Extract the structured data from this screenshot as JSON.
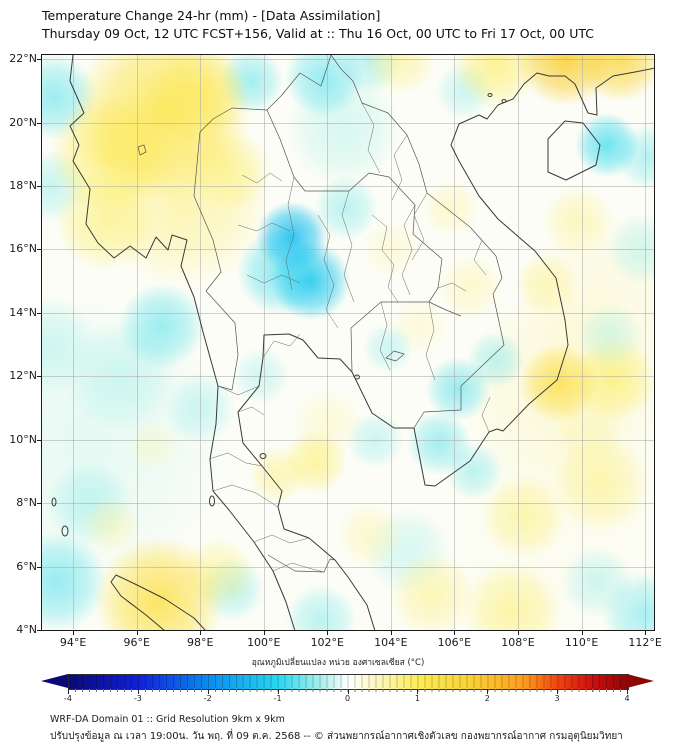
{
  "title": {
    "line1": "Temperature Change 24-hr (mm) - [Data Assimilation]",
    "line2": "Thursday 09 Oct, 12 UTC FCST+156, Valid at :: Thu 16 Oct, 00 UTC to Fri 17 Oct, 00 UTC"
  },
  "footer": {
    "line1": "WRF-DA Domain 01 :: Grid Resolution 9km x 9km",
    "line2": "ปรับปรุงข้อมูล ณ เวลา 19:00น. วัน พฤ. ที่ 09 ต.ค. 2568 -- © ส่วนพยากรณ์อากาศเชิงตัวเลข กองพยากรณ์อากาศ กรมอุตุนิยมวิทยา"
  },
  "chart_data": {
    "type": "heatmap",
    "title": "Temperature Change 24-hr (mm) - [Data Assimilation]",
    "subtitle": "Thursday 09 Oct, 12 UTC FCST+156, Valid at :: Thu 16 Oct, 00 UTC to Fri 17 Oct, 00 UTC",
    "region": "Thailand / Indochina (WRF-DA Domain 01, 9km grid)",
    "extent": {
      "lon": [
        93.02,
        112.28
      ],
      "lat": [
        4.0,
        22.13
      ]
    },
    "x_ticks": [
      {
        "label": "94°E",
        "lon": 94
      },
      {
        "label": "96°E",
        "lon": 96
      },
      {
        "label": "98°E",
        "lon": 98
      },
      {
        "label": "100°E",
        "lon": 100
      },
      {
        "label": "102°E",
        "lon": 102
      },
      {
        "label": "104°E",
        "lon": 104
      },
      {
        "label": "106°E",
        "lon": 106
      },
      {
        "label": "108°E",
        "lon": 108
      },
      {
        "label": "110°E",
        "lon": 110
      },
      {
        "label": "112°E",
        "lon": 112
      }
    ],
    "y_ticks": [
      {
        "label": "22°N",
        "lat": 22
      },
      {
        "label": "20°N",
        "lat": 20
      },
      {
        "label": "18°N",
        "lat": 18
      },
      {
        "label": "16°N",
        "lat": 16
      },
      {
        "label": "14°N",
        "lat": 14
      },
      {
        "label": "12°N",
        "lat": 12
      },
      {
        "label": "10°N",
        "lat": 10
      },
      {
        "label": "8°N",
        "lat": 8
      },
      {
        "label": "6°N",
        "lat": 6
      },
      {
        "label": "4°N",
        "lat": 4
      }
    ],
    "grid": true,
    "colorbar": {
      "label": "อุณหภูมิเปลี่ยนแปลง หน่วย องศาเซลเซียส (°C)",
      "ticks": [
        "-4",
        "-3",
        "-2",
        "-1",
        "0",
        "1",
        "2",
        "3",
        "4"
      ],
      "range": [
        -4,
        4
      ],
      "orientation": "horizontal",
      "extend": "both",
      "stops": [
        {
          "v": -4.0,
          "c": "#0a0a78"
        },
        {
          "v": -3.0,
          "c": "#1020d8"
        },
        {
          "v": -2.0,
          "c": "#0a8cf0"
        },
        {
          "v": -1.0,
          "c": "#28d8f0"
        },
        {
          "v": -0.4,
          "c": "#a8f0ea"
        },
        {
          "v": 0.0,
          "c": "#ffffff"
        },
        {
          "v": 0.4,
          "c": "#fdf6c0"
        },
        {
          "v": 1.0,
          "c": "#fdec55"
        },
        {
          "v": 1.8,
          "c": "#f8cf35"
        },
        {
          "v": 2.5,
          "c": "#ff9d1e"
        },
        {
          "v": 3.0,
          "c": "#f04410"
        },
        {
          "v": 3.5,
          "c": "#cc0f0f"
        },
        {
          "v": 4.0,
          "c": "#8c0606"
        }
      ]
    },
    "anomaly_blobs": [
      {
        "lon": 96.8,
        "lat": 20.3,
        "r": 125,
        "v": 1.2,
        "a": 0.85
      },
      {
        "lon": 95.2,
        "lat": 19.0,
        "r": 85,
        "v": 1.0,
        "a": 0.7
      },
      {
        "lon": 97.9,
        "lat": 20.9,
        "r": 70,
        "v": 1.1,
        "a": 0.6
      },
      {
        "lon": 95.0,
        "lat": 16.9,
        "r": 70,
        "v": 0.9,
        "a": 0.6
      },
      {
        "lon": 97.5,
        "lat": 17.5,
        "r": 120,
        "v": 0.8,
        "a": 0.55
      },
      {
        "lon": 98.9,
        "lat": 18.5,
        "r": 60,
        "v": 0.9,
        "a": 0.5
      },
      {
        "lon": 109.5,
        "lat": 22.1,
        "r": 70,
        "v": 1.8,
        "a": 0.9
      },
      {
        "lon": 111.2,
        "lat": 22.0,
        "r": 60,
        "v": 1.6,
        "a": 0.8
      },
      {
        "lon": 107.3,
        "lat": 21.8,
        "r": 60,
        "v": 1.0,
        "a": 0.6
      },
      {
        "lon": 104.3,
        "lat": 22.0,
        "r": 50,
        "v": 0.8,
        "a": 0.5
      },
      {
        "lon": 101.9,
        "lat": 21.4,
        "r": 55,
        "v": -0.8,
        "a": 0.6
      },
      {
        "lon": 103.3,
        "lat": 21.9,
        "r": 45,
        "v": -0.6,
        "a": 0.5
      },
      {
        "lon": 106.3,
        "lat": 21.0,
        "r": 40,
        "v": -0.5,
        "a": 0.45
      },
      {
        "lon": 93.4,
        "lat": 20.8,
        "r": 60,
        "v": -0.7,
        "a": 0.65
      },
      {
        "lon": 93.3,
        "lat": 18.0,
        "r": 50,
        "v": -0.5,
        "a": 0.5
      },
      {
        "lon": 93.2,
        "lat": 13.0,
        "r": 70,
        "v": -0.4,
        "a": 0.5
      },
      {
        "lon": 100.9,
        "lat": 16.4,
        "r": 50,
        "v": -1.3,
        "a": 0.9
      },
      {
        "lon": 101.5,
        "lat": 15.0,
        "r": 55,
        "v": -1.2,
        "a": 0.85
      },
      {
        "lon": 100.5,
        "lat": 15.3,
        "r": 60,
        "v": -0.9,
        "a": 0.6
      },
      {
        "lon": 102.6,
        "lat": 17.3,
        "r": 45,
        "v": -0.6,
        "a": 0.5
      },
      {
        "lon": 99.6,
        "lat": 21.3,
        "r": 45,
        "v": -0.7,
        "a": 0.6
      },
      {
        "lon": 102.5,
        "lat": 19.8,
        "r": 80,
        "v": -0.4,
        "a": 0.45
      },
      {
        "lon": 110.8,
        "lat": 19.3,
        "r": 45,
        "v": -0.9,
        "a": 0.75
      },
      {
        "lon": 112.1,
        "lat": 18.9,
        "r": 45,
        "v": -0.6,
        "a": 0.55
      },
      {
        "lon": 111.9,
        "lat": 16.0,
        "r": 50,
        "v": -0.4,
        "a": 0.5
      },
      {
        "lon": 110.9,
        "lat": 13.3,
        "r": 45,
        "v": -0.4,
        "a": 0.45
      },
      {
        "lon": 106.1,
        "lat": 11.6,
        "r": 45,
        "v": -0.8,
        "a": 0.6
      },
      {
        "lon": 107.3,
        "lat": 12.5,
        "r": 40,
        "v": -0.6,
        "a": 0.5
      },
      {
        "lon": 105.5,
        "lat": 9.9,
        "r": 45,
        "v": -0.7,
        "a": 0.6
      },
      {
        "lon": 106.6,
        "lat": 9.0,
        "r": 40,
        "v": -0.6,
        "a": 0.5
      },
      {
        "lon": 103.9,
        "lat": 12.9,
        "r": 35,
        "v": -0.5,
        "a": 0.45
      },
      {
        "lon": 109.3,
        "lat": 11.8,
        "r": 55,
        "v": 1.4,
        "a": 0.8
      },
      {
        "lon": 111.0,
        "lat": 11.9,
        "r": 60,
        "v": 1.0,
        "a": 0.6
      },
      {
        "lon": 110.6,
        "lat": 8.6,
        "r": 70,
        "v": 0.8,
        "a": 0.55
      },
      {
        "lon": 108.2,
        "lat": 7.6,
        "r": 60,
        "v": 0.9,
        "a": 0.5
      },
      {
        "lon": 105.3,
        "lat": 5.1,
        "r": 60,
        "v": 0.8,
        "a": 0.5
      },
      {
        "lon": 107.8,
        "lat": 4.6,
        "r": 70,
        "v": 0.9,
        "a": 0.55
      },
      {
        "lon": 109.5,
        "lat": 11.5,
        "r": 150,
        "v": 0.5,
        "a": 0.45
      },
      {
        "lon": 110.8,
        "lat": 14.5,
        "r": 120,
        "v": 0.4,
        "a": 0.4
      },
      {
        "lon": 101.6,
        "lat": 9.3,
        "r": 45,
        "v": 0.9,
        "a": 0.6
      },
      {
        "lon": 100.4,
        "lat": 8.9,
        "r": 40,
        "v": 0.8,
        "a": 0.5
      },
      {
        "lon": 103.3,
        "lat": 7.0,
        "r": 45,
        "v": 0.6,
        "a": 0.45
      },
      {
        "lon": 96.5,
        "lat": 9.8,
        "r": 35,
        "v": 0.5,
        "a": 0.4
      },
      {
        "lon": 96.7,
        "lat": 4.9,
        "r": 90,
        "v": 1.3,
        "a": 0.85
      },
      {
        "lon": 98.6,
        "lat": 5.8,
        "r": 50,
        "v": 0.8,
        "a": 0.5
      },
      {
        "lon": 95.2,
        "lat": 7.3,
        "r": 40,
        "v": 0.6,
        "a": 0.45
      },
      {
        "lon": 96.8,
        "lat": 13.6,
        "r": 60,
        "v": -0.7,
        "a": 0.65
      },
      {
        "lon": 95.5,
        "lat": 12.0,
        "r": 80,
        "v": -0.4,
        "a": 0.5
      },
      {
        "lon": 98.0,
        "lat": 11.0,
        "r": 50,
        "v": -0.5,
        "a": 0.45
      },
      {
        "lon": 94.5,
        "lat": 8.0,
        "r": 60,
        "v": -0.5,
        "a": 0.5
      },
      {
        "lon": 93.5,
        "lat": 5.5,
        "r": 70,
        "v": -0.8,
        "a": 0.6
      },
      {
        "lon": 99.0,
        "lat": 5.3,
        "r": 45,
        "v": -0.6,
        "a": 0.5
      },
      {
        "lon": 101.8,
        "lat": 4.3,
        "r": 50,
        "v": -0.6,
        "a": 0.5
      },
      {
        "lon": 103.5,
        "lat": 10.0,
        "r": 40,
        "v": -0.5,
        "a": 0.45
      },
      {
        "lon": 112.0,
        "lat": 4.5,
        "r": 60,
        "v": -0.7,
        "a": 0.55
      },
      {
        "lon": 110.5,
        "lat": 5.5,
        "r": 50,
        "v": -0.5,
        "a": 0.45
      },
      {
        "lon": 104.5,
        "lat": 6.5,
        "r": 60,
        "v": -0.4,
        "a": 0.45
      },
      {
        "lon": 99.9,
        "lat": 12.0,
        "r": 40,
        "v": -0.5,
        "a": 0.4
      },
      {
        "lon": 102.0,
        "lat": 10.5,
        "r": 50,
        "v": 0.5,
        "a": 0.4
      },
      {
        "lon": 104.9,
        "lat": 13.6,
        "r": 40,
        "v": 0.5,
        "a": 0.4
      },
      {
        "lon": 106.5,
        "lat": 14.8,
        "r": 45,
        "v": 0.6,
        "a": 0.45
      },
      {
        "lon": 104.0,
        "lat": 16.0,
        "r": 40,
        "v": 0.5,
        "a": 0.4
      },
      {
        "lon": 105.9,
        "lat": 17.3,
        "r": 40,
        "v": 0.6,
        "a": 0.45
      },
      {
        "lon": 109.9,
        "lat": 16.9,
        "r": 50,
        "v": 0.7,
        "a": 0.5
      },
      {
        "lon": 108.9,
        "lat": 14.9,
        "r": 45,
        "v": 0.8,
        "a": 0.5
      },
      {
        "lon": 110.2,
        "lat": 10.3,
        "r": 50,
        "v": 0.6,
        "a": 0.45
      },
      {
        "lon": 94.5,
        "lat": 10.0,
        "r": 200,
        "v": -0.3,
        "a": 0.35
      },
      {
        "lon": 109.0,
        "lat": 7.0,
        "r": 180,
        "v": 0.2,
        "a": 0.3
      }
    ]
  }
}
